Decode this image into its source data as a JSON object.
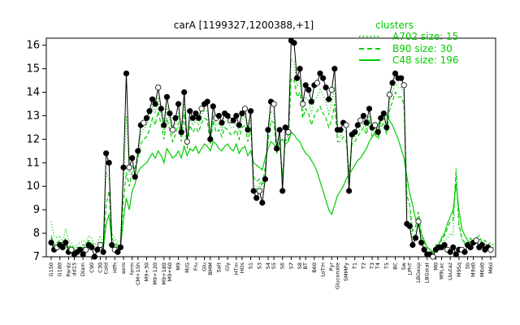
{
  "chart_data": {
    "type": "line",
    "title": "carA [1199327,1200388,+1]",
    "xlabel": "",
    "ylabel": "",
    "ylim": [
      7,
      16.3
    ],
    "yticks": [
      7,
      8,
      9,
      10,
      11,
      12,
      13,
      14,
      15,
      16
    ],
    "grid": false,
    "legend": {
      "title": "clusters",
      "position": "top-right",
      "entries": [
        {
          "label": "A702 size: 15",
          "style": "dotted"
        },
        {
          "label": "B90 size: 30",
          "style": "dashed"
        },
        {
          "label": "C48 size: 196",
          "style": "solid"
        }
      ]
    },
    "colors": {
      "cluster": "#00cc00",
      "gene_line": "#000000",
      "point_fill": "#000000",
      "point_open": "#ffffff"
    },
    "x_tick_labels": [
      "G150",
      "G180",
      "Pardz",
      "dd15",
      "Diam",
      "C90",
      "C30",
      "Cold",
      "HPh",
      "aero",
      "ferm",
      "CM+15h",
      "M9+30",
      "M9+120",
      "M9+180",
      "M9+60",
      "M9",
      "M/G",
      "Fru",
      "Glu",
      "BMM",
      "Salt",
      "Gly",
      "HTm",
      "HOs",
      "S1",
      "S3",
      "S4",
      "S5",
      "S6",
      "S7",
      "S8",
      "BT",
      "B60",
      "LoTm",
      "Pyr",
      "Gluconate",
      "SMMPy",
      "T1",
      "T2",
      "T3",
      "T4",
      "T5",
      "BC",
      "Sw",
      "LPhT",
      "LBGexp",
      "LBGstat",
      "M0",
      "M9Lac",
      "Lbutaz",
      "M9Sq",
      "Sb",
      "M9d0",
      "M6d0",
      "M6d"
    ],
    "series": [
      {
        "role": "gene",
        "values": [
          7.6,
          7.3,
          7.4,
          7.5,
          7.4,
          7.6,
          7.2,
          7.3,
          7.1,
          7.2,
          7.3,
          7.1,
          7.3,
          7.5,
          7.4,
          7.0,
          7.3,
          7.5,
          7.2,
          11.4,
          11.0,
          7.5,
          7.3,
          7.2,
          7.4,
          10.8,
          14.8,
          10.8,
          11.2,
          10.4,
          11.5,
          12.6,
          12.7,
          12.9,
          13.2,
          13.7,
          13.5,
          14.2,
          13.3,
          12.6,
          13.8,
          13.1,
          12.4,
          12.9,
          13.5,
          12.3,
          14.0,
          11.9,
          13.2,
          12.9,
          13.1,
          12.9,
          13.3,
          13.5,
          13.6,
          12.0,
          13.4,
          12.9,
          13.0,
          12.7,
          13.1,
          13.0,
          12.8,
          12.8,
          13.0,
          12.6,
          13.1,
          13.3,
          12.4,
          13.2,
          9.8,
          9.5,
          9.8,
          9.3,
          10.3,
          12.4,
          13.6,
          13.5,
          11.6,
          12.4,
          9.8,
          12.5,
          12.3,
          16.2,
          16.1,
          14.6,
          15.0,
          13.5,
          14.3,
          14.1,
          13.6,
          14.3,
          14.4,
          14.8,
          14.6,
          14.2,
          13.7,
          14.1,
          15.0,
          12.4,
          12.4,
          12.7,
          12.6,
          9.8,
          12.2,
          12.3,
          12.6,
          12.8,
          13.0,
          12.7,
          13.3,
          12.5,
          12.6,
          12.3,
          12.9,
          13.1,
          12.5,
          13.9,
          14.4,
          14.8,
          14.6,
          14.6,
          14.3,
          8.4,
          8.3,
          7.5,
          7.8,
          8.5,
          7.6,
          7.3,
          7.1,
          7.1,
          7.0,
          7.3,
          7.4,
          7.4,
          7.5,
          7.3,
          7.2,
          7.4,
          7.1,
          7.3,
          7.3,
          7.2,
          7.5,
          7.4,
          7.6,
          7.7,
          7.4,
          7.5,
          7.3,
          7.4,
          7.3
        ]
      },
      {
        "name": "C48 size: 196",
        "role": "cluster-solid",
        "values": [
          7.8,
          7.4,
          7.5,
          7.6,
          7.4,
          7.7,
          7.3,
          7.4,
          7.2,
          7.3,
          7.3,
          7.4,
          7.4,
          7.6,
          7.5,
          7.3,
          7.3,
          7.5,
          7.3,
          8.4,
          8.8,
          7.6,
          7.5,
          7.4,
          7.4,
          8.6,
          9.5,
          9.0,
          9.8,
          10.1,
          10.6,
          10.8,
          10.9,
          11.0,
          11.2,
          11.4,
          11.2,
          11.5,
          11.3,
          11.0,
          11.6,
          11.4,
          11.2,
          11.3,
          11.5,
          11.2,
          11.7,
          11.3,
          11.6,
          11.5,
          11.7,
          11.4,
          11.6,
          11.8,
          11.7,
          11.5,
          11.9,
          11.8,
          11.6,
          11.5,
          11.7,
          11.8,
          11.6,
          11.5,
          11.8,
          11.4,
          11.6,
          11.7,
          11.3,
          11.5,
          11.0,
          10.9,
          10.8,
          10.7,
          11.2,
          11.6,
          11.9,
          11.8,
          11.5,
          11.9,
          12.0,
          11.8,
          11.9,
          12.3,
          12.2,
          12.0,
          11.9,
          11.6,
          11.4,
          11.3,
          11.1,
          10.9,
          10.6,
          10.2,
          9.8,
          9.4,
          9.0,
          8.8,
          9.2,
          9.6,
          9.8,
          10.0,
          10.3,
          10.5,
          10.7,
          10.9,
          11.1,
          11.2,
          11.4,
          11.6,
          11.9,
          12.1,
          12.3,
          12.6,
          12.9,
          13.1,
          13.0,
          12.8,
          12.6,
          12.3,
          12.0,
          11.6,
          11.2,
          10.4,
          9.7,
          9.2,
          8.6,
          8.3,
          8.0,
          7.7,
          7.4,
          7.3,
          7.2,
          7.4,
          7.5,
          7.8,
          8.0,
          8.4,
          8.7,
          9.0,
          10.1,
          9.0,
          8.2,
          7.9,
          7.7,
          7.6,
          7.5,
          7.6,
          7.5,
          7.4,
          7.4,
          7.5
        ]
      },
      {
        "name": "B90 size: 30",
        "role": "cluster-dashed",
        "values": [
          7.9,
          7.5,
          7.6,
          7.7,
          7.5,
          7.8,
          7.4,
          7.5,
          7.3,
          7.4,
          7.4,
          7.5,
          7.5,
          7.7,
          7.6,
          7.4,
          7.4,
          7.6,
          7.4,
          9.2,
          9.8,
          7.8,
          7.6,
          7.5,
          7.5,
          9.4,
          10.6,
          10.0,
          10.6,
          10.8,
          11.2,
          11.8,
          12.0,
          12.1,
          12.4,
          12.9,
          12.6,
          13.2,
          12.6,
          12.0,
          12.9,
          12.4,
          11.9,
          12.2,
          12.7,
          11.9,
          13.1,
          11.6,
          12.6,
          12.3,
          12.5,
          12.3,
          12.7,
          12.9,
          12.8,
          11.8,
          12.8,
          12.3,
          12.4,
          12.1,
          12.5,
          12.4,
          12.2,
          12.2,
          12.4,
          12.0,
          12.5,
          12.6,
          11.9,
          12.5,
          10.4,
          10.2,
          10.3,
          10.0,
          10.8,
          11.9,
          12.8,
          12.7,
          11.4,
          11.9,
          10.4,
          12.0,
          11.9,
          14.6,
          14.5,
          13.8,
          14.0,
          12.9,
          13.3,
          13.1,
          12.6,
          13.0,
          13.2,
          13.4,
          13.1,
          12.9,
          12.5,
          12.8,
          13.5,
          11.9,
          11.9,
          12.1,
          12.0,
          10.6,
          11.8,
          11.9,
          12.1,
          12.3,
          12.5,
          12.2,
          12.8,
          12.1,
          12.2,
          12.0,
          12.5,
          12.7,
          12.2,
          13.2,
          13.6,
          14.0,
          13.8,
          13.8,
          13.5,
          9.6,
          9.2,
          8.1,
          8.3,
          8.9,
          8.0,
          7.6,
          7.4,
          7.3,
          7.2,
          7.5,
          7.6,
          7.7,
          7.9,
          8.2,
          8.5,
          8.6,
          10.6,
          8.4,
          7.8,
          7.6,
          7.5,
          7.8,
          7.6,
          7.8,
          7.9,
          7.6,
          7.7,
          7.5,
          7.6,
          7.5
        ]
      },
      {
        "name": "A702 size: 15",
        "role": "cluster-dotted",
        "values": [
          8.5,
          7.9,
          7.8,
          7.9,
          7.6,
          8.2,
          7.7,
          7.6,
          7.4,
          7.5,
          7.6,
          7.7,
          7.6,
          7.9,
          7.8,
          7.5,
          7.6,
          7.9,
          7.5,
          10.6,
          10.3,
          8.0,
          7.8,
          7.6,
          7.7,
          10.2,
          13.0,
          10.5,
          10.9,
          10.7,
          11.4,
          12.2,
          12.4,
          12.6,
          12.9,
          13.4,
          13.1,
          13.8,
          13.0,
          12.3,
          13.4,
          12.8,
          12.2,
          12.6,
          13.1,
          12.2,
          13.6,
          11.8,
          12.9,
          12.6,
          12.8,
          12.6,
          13.0,
          13.2,
          13.2,
          11.9,
          13.1,
          12.6,
          12.7,
          12.4,
          12.8,
          12.7,
          12.5,
          12.5,
          12.7,
          12.3,
          12.8,
          13.0,
          12.2,
          12.9,
          10.1,
          9.9,
          10.1,
          9.7,
          10.5,
          12.1,
          13.2,
          13.1,
          11.5,
          12.1,
          10.1,
          12.2,
          12.1,
          15.4,
          15.3,
          14.2,
          14.5,
          13.2,
          13.8,
          13.6,
          13.1,
          13.7,
          13.8,
          14.1,
          13.9,
          13.6,
          13.1,
          13.5,
          14.3,
          12.1,
          12.1,
          12.4,
          12.3,
          10.2,
          12.0,
          12.1,
          12.3,
          12.5,
          12.7,
          12.4,
          13.0,
          12.3,
          12.4,
          12.1,
          12.7,
          12.9,
          12.3,
          13.6,
          14.0,
          14.4,
          14.2,
          14.2,
          13.9,
          9.0,
          8.8,
          7.8,
          8.0,
          8.7,
          7.8,
          7.4,
          7.2,
          7.2,
          7.1,
          7.4,
          7.5,
          7.6,
          7.7,
          7.8,
          8.0,
          7.9,
          10.8,
          8.3,
          7.7,
          7.5,
          7.4,
          7.7,
          7.5,
          7.7,
          7.8,
          7.5,
          7.6,
          7.4,
          7.5,
          7.4
        ]
      }
    ]
  }
}
